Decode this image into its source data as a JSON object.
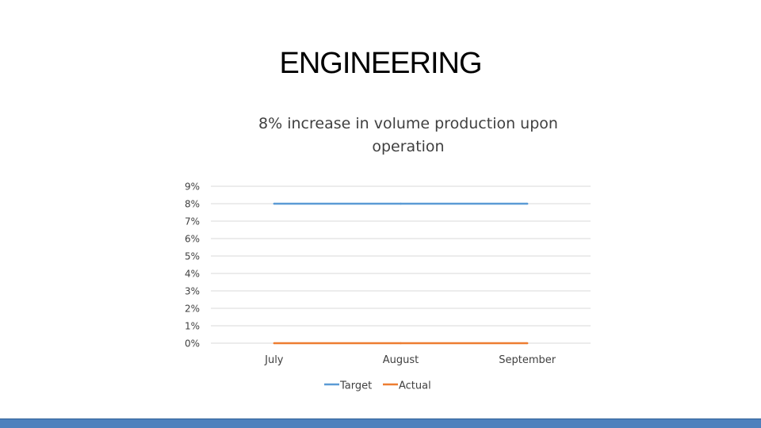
{
  "slide": {
    "title": "ENGINEERING"
  },
  "chart_data": {
    "type": "line",
    "title": "8% increase in volume production upon operation",
    "categories": [
      "July",
      "August",
      "September"
    ],
    "series": [
      {
        "name": "Target",
        "values": [
          0.08,
          0.08,
          0.08
        ],
        "color": "#5b9bd5"
      },
      {
        "name": "Actual",
        "values": [
          0.0,
          0.0,
          0.0
        ],
        "color": "#ed7d31"
      }
    ],
    "yticks": [
      "0%",
      "1%",
      "2%",
      "3%",
      "4%",
      "5%",
      "6%",
      "7%",
      "8%",
      "9%"
    ],
    "ylim": [
      0,
      0.09
    ],
    "grid": true,
    "legend": "bottom"
  },
  "colors": {
    "gridline": "#d9d9d9",
    "tick_text": "#404040",
    "footer": "#4f81bd"
  }
}
